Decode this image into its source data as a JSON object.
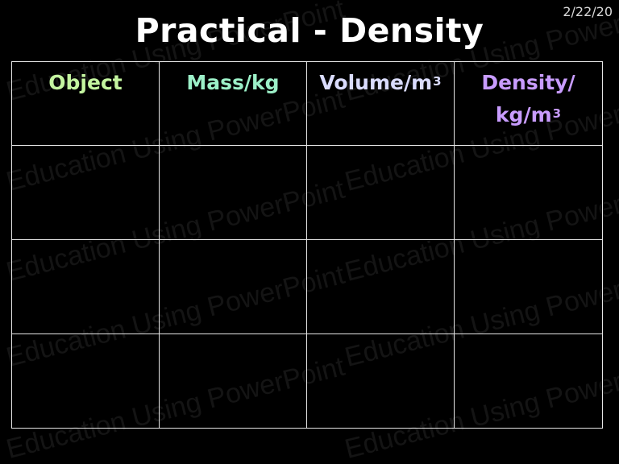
{
  "slide": {
    "date": "2/22/20",
    "title": "Practical - Density"
  },
  "watermark": {
    "text": "Education Using PowerPoint"
  },
  "table": {
    "headers": [
      {
        "base": "Object",
        "sup": "",
        "color": "#c4f5a0"
      },
      {
        "base": "Mass/kg",
        "sup": "",
        "color": "#9cf0c8"
      },
      {
        "base": "Volume/m",
        "sup": "3",
        "color": "#dadcff"
      },
      {
        "line1": "Density/",
        "base": "kg/m",
        "sup": "3",
        "color": "#c89cff"
      }
    ],
    "rows": [
      [
        "",
        "",
        "",
        ""
      ],
      [
        "",
        "",
        "",
        ""
      ],
      [
        "",
        "",
        "",
        ""
      ]
    ]
  }
}
